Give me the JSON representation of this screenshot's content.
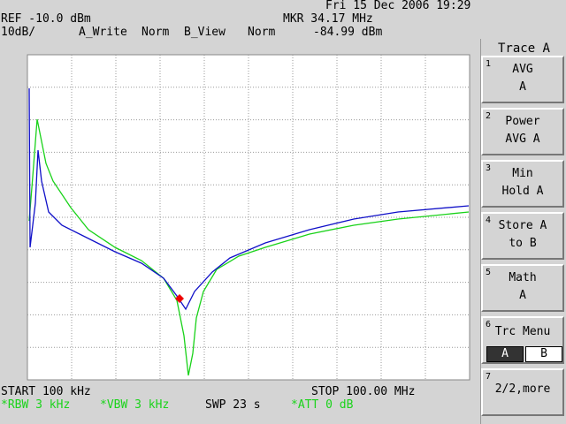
{
  "header": {
    "datetime": "Fri 15 Dec 2006 19:29",
    "ref": "REF -10.0 dBm",
    "marker_freq": "MKR 34.17 MHz",
    "scale": "10dB/",
    "trace_a_mode": "A_Write",
    "trace_a_det": "Norm",
    "trace_b_mode": "B_View",
    "trace_b_det": "Norm",
    "marker_level": "-84.99 dBm"
  },
  "footer": {
    "start": "START 100 kHz",
    "stop": "STOP 100.00 MHz",
    "rbw": "*RBW 3 kHz",
    "vbw": "*VBW 3 kHz",
    "sweep": "SWP 23 s",
    "att": "*ATT 0 dB"
  },
  "softkeys": {
    "title": "Trace A",
    "keys": [
      {
        "number": "1",
        "label": "AVG A"
      },
      {
        "number": "2",
        "label": "Power AVG A"
      },
      {
        "number": "3",
        "label": "Min Hold A"
      },
      {
        "number": "4",
        "label": "Store A to B"
      },
      {
        "number": "5",
        "label": "Math A"
      },
      {
        "number": "6",
        "label": "Trc Menu",
        "options": [
          "A",
          "B"
        ]
      },
      {
        "number": "7",
        "label": "2/2,more"
      }
    ]
  }
}
